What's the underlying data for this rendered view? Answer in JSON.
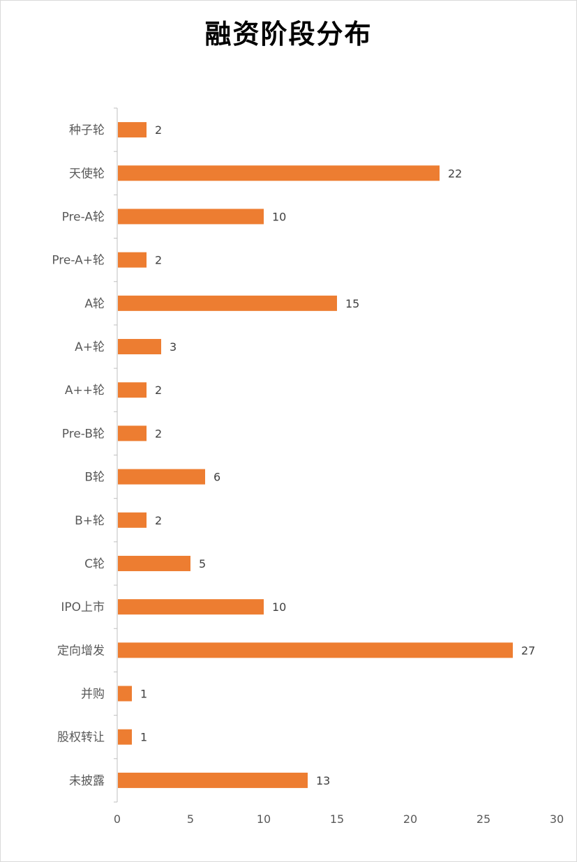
{
  "chart_data": {
    "type": "bar",
    "orientation": "horizontal",
    "title": "融资阶段分布",
    "categories": [
      "种子轮",
      "天使轮",
      "Pre-A轮",
      "Pre-A+轮",
      "A轮",
      "A+轮",
      "A++轮",
      "Pre-B轮",
      "B轮",
      "B+轮",
      "C轮",
      "IPO上市",
      "定向增发",
      "并购",
      "股权转让",
      "未披露"
    ],
    "values": [
      2,
      22,
      10,
      2,
      15,
      3,
      2,
      2,
      6,
      2,
      5,
      10,
      27,
      1,
      1,
      13
    ],
    "xlim": [
      0,
      30
    ],
    "x_ticks": [
      "0",
      "5",
      "10",
      "15",
      "20",
      "25",
      "30"
    ],
    "xlabel": "",
    "ylabel": "",
    "grid": false,
    "legend": "none",
    "data_labels": true,
    "bar_color": "#ED7D31"
  }
}
